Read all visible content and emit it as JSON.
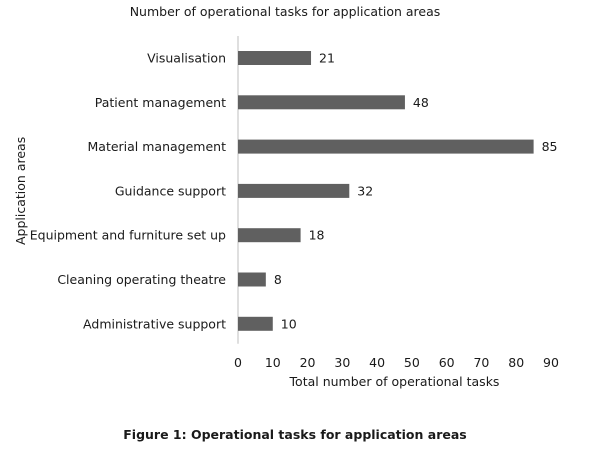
{
  "chart_data": {
    "type": "bar",
    "orientation": "horizontal",
    "title": "Number of operational tasks for application areas",
    "xlabel": "Total number of operational tasks",
    "ylabel": "Application areas",
    "categories": [
      "Visualisation",
      "Patient management",
      "Material management",
      "Guidance support",
      "Equipment and furniture set up",
      "Cleaning operating theatre",
      "Administrative support"
    ],
    "values": [
      21,
      48,
      85,
      32,
      18,
      8,
      10
    ],
    "xlim": [
      0,
      90
    ],
    "xticks": [
      0,
      10,
      20,
      30,
      40,
      50,
      60,
      70,
      80,
      90
    ],
    "grid": false,
    "bar_color": "#606060",
    "data_labels": true
  },
  "caption": "Figure 1: Operational tasks for application areas"
}
